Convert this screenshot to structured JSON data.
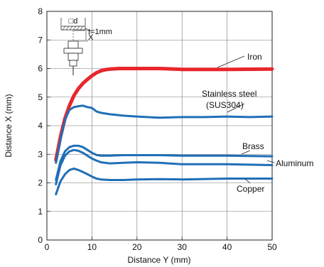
{
  "chart_data": {
    "type": "line",
    "xlabel": "Distance Y (mm)",
    "ylabel": "Distance X (mm)",
    "xlim": [
      0,
      50
    ],
    "ylim": [
      0,
      8
    ],
    "xticks": [
      0,
      10,
      20,
      30,
      40,
      50
    ],
    "yticks": [
      0,
      1,
      2,
      3,
      4,
      5,
      6,
      7,
      8
    ],
    "grid": true,
    "inset": {
      "dim_label": "□d",
      "x_label": "X",
      "thickness_label": "t=1mm"
    },
    "series": [
      {
        "name": "Iron",
        "color": "#e8262c",
        "x": [
          2,
          3,
          4,
          5,
          6,
          7,
          8,
          9,
          10,
          11,
          12,
          13,
          14,
          16,
          20,
          25,
          30,
          40,
          50
        ],
        "y": [
          2.8,
          3.6,
          4.25,
          4.7,
          5.05,
          5.3,
          5.48,
          5.62,
          5.75,
          5.85,
          5.92,
          5.96,
          5.98,
          6.0,
          6.0,
          6.0,
          5.97,
          5.97,
          5.98
        ]
      },
      {
        "name": "Stainless steel (SUS304)",
        "color": "#1f6fb7",
        "x": [
          2,
          3,
          4,
          5,
          6,
          7,
          8,
          9,
          10,
          11,
          12,
          14,
          17,
          20,
          25,
          30,
          35,
          40,
          45,
          50
        ],
        "y": [
          2.7,
          3.5,
          4.2,
          4.55,
          4.65,
          4.68,
          4.7,
          4.65,
          4.62,
          4.5,
          4.45,
          4.4,
          4.35,
          4.32,
          4.28,
          4.3,
          4.3,
          4.32,
          4.3,
          4.32
        ]
      },
      {
        "name": "Brass",
        "color": "#1f6fb7",
        "x": [
          2,
          3,
          4,
          5,
          6,
          7,
          8,
          9,
          10,
          11,
          12,
          14,
          17,
          20,
          25,
          30,
          40,
          50
        ],
        "y": [
          2.1,
          2.75,
          3.1,
          3.25,
          3.3,
          3.3,
          3.25,
          3.15,
          3.05,
          2.98,
          2.95,
          2.95,
          2.97,
          2.97,
          2.97,
          2.95,
          2.95,
          2.93
        ]
      },
      {
        "name": "Aluminum",
        "color": "#1f6fb7",
        "x": [
          2,
          3,
          4,
          5,
          6,
          7,
          8,
          9,
          10,
          11,
          12,
          14,
          17,
          20,
          25,
          30,
          40,
          50
        ],
        "y": [
          1.95,
          2.6,
          2.95,
          3.1,
          3.15,
          3.12,
          3.05,
          2.95,
          2.85,
          2.78,
          2.72,
          2.68,
          2.7,
          2.72,
          2.7,
          2.65,
          2.65,
          2.62
        ]
      },
      {
        "name": "Copper",
        "color": "#1f6fb7",
        "x": [
          2,
          3,
          4,
          5,
          6,
          7,
          8,
          9,
          10,
          11,
          12,
          14,
          17,
          20,
          25,
          30,
          40,
          50
        ],
        "y": [
          1.6,
          2.05,
          2.3,
          2.45,
          2.5,
          2.45,
          2.38,
          2.3,
          2.22,
          2.15,
          2.12,
          2.1,
          2.1,
          2.12,
          2.13,
          2.12,
          2.15,
          2.15
        ]
      }
    ]
  },
  "labels": {
    "iron": "Iron",
    "stainless": "Stainless steel",
    "stainless_sub": "(SUS304)",
    "brass": "Brass",
    "aluminum": "Aluminum",
    "copper": "Copper"
  }
}
